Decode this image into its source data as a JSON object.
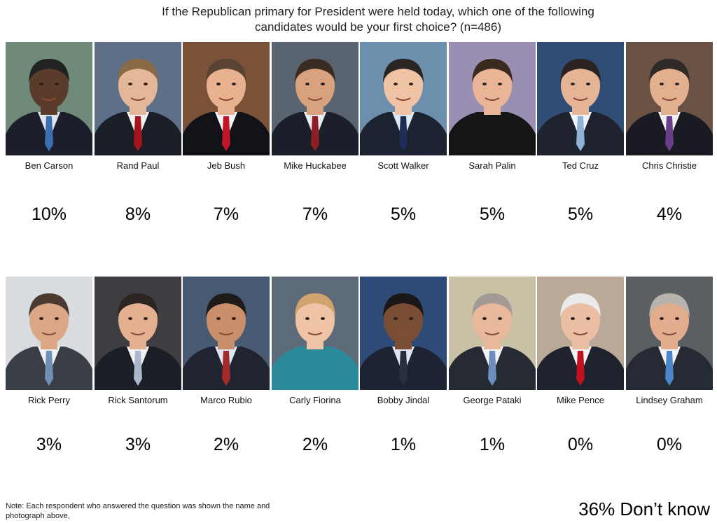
{
  "title_lines": [
    "If the Republican primary for President were held today, which one of the following",
    "candidates would be your first choice? (n=486)"
  ],
  "chart_data": {
    "type": "table",
    "title": "If the Republican primary for President were held today, which one of the following candidates would be your first choice? (n=486)",
    "unit": "%",
    "categories": [
      "Ben Carson",
      "Rand Paul",
      "Jeb Bush",
      "Mike Huckabee",
      "Scott Walker",
      "Sarah Palin",
      "Ted Cruz",
      "Chris Christie",
      "Rick Perry",
      "Rick Santorum",
      "Marco Rubio",
      "Carly Fiorina",
      "Bobby Jindal",
      "George Pataki",
      "Mike Pence",
      "Lindsey Graham"
    ],
    "values": [
      10,
      8,
      7,
      7,
      5,
      5,
      5,
      4,
      3,
      3,
      2,
      2,
      1,
      1,
      0,
      0
    ],
    "labels": [
      "10%",
      "8%",
      "7%",
      "7%",
      "5%",
      "5%",
      "5%",
      "4%",
      "3%",
      "3%",
      "2%",
      "2%",
      "1%",
      "1%",
      "0%",
      "0%"
    ],
    "dont_know": {
      "value": 36,
      "label": "36% Don’t know"
    }
  },
  "photo_styles": [
    {
      "bg": "#6f8a78",
      "suit": "#1c1f2b",
      "skin": "#5b3b2a",
      "hair": "#222222",
      "tie": "#3b6fb0",
      "shirt": "#dfe6ee"
    },
    {
      "bg": "#5d7088",
      "suit": "#1a1e27",
      "skin": "#e3b797",
      "hair": "#8a6a45",
      "tie": "#a8141b",
      "shirt": "#f2f2f2"
    },
    {
      "bg": "#7a5238",
      "suit": "#111318",
      "skin": "#e8b190",
      "hair": "#5b4333",
      "tie": "#c1162a",
      "shirt": "#f4f4f4"
    },
    {
      "bg": "#5a6471",
      "suit": "#1b1f29",
      "skin": "#d9a27e",
      "hair": "#3a2c22",
      "tie": "#8f1d24",
      "shirt": "#e9eef5"
    },
    {
      "bg": "#6d8fae",
      "suit": "#1d2230",
      "skin": "#f0c3a4",
      "hair": "#2a2522",
      "tie": "#1c2e55",
      "shirt": "#dde8f4"
    },
    {
      "bg": "#9a8fb2",
      "suit": "#151515",
      "skin": "#eab596",
      "hair": "#3a2a20",
      "tie": "#151515",
      "shirt": "#151515"
    },
    {
      "bg": "#2f4d75",
      "suit": "#1f2330",
      "skin": "#e5b494",
      "hair": "#2a2321",
      "tie": "#8fb4d8",
      "shirt": "#f1f4f8"
    },
    {
      "bg": "#6a5244",
      "suit": "#1a1b22",
      "skin": "#e3b08f",
      "hair": "#2f2a28",
      "tie": "#6a3e88",
      "shirt": "#f1f1f1"
    },
    {
      "bg": "#d9dde0",
      "suit": "#3a3f47",
      "skin": "#dca786",
      "hair": "#4a3a30",
      "tie": "#6f8fb3",
      "shirt": "#eef2f6"
    },
    {
      "bg": "#3d3d42",
      "suit": "#1d1f26",
      "skin": "#e4b08f",
      "hair": "#2b2421",
      "tie": "#aab7cc",
      "shirt": "#f2f2f2"
    },
    {
      "bg": "#485a72",
      "suit": "#1f2430",
      "skin": "#c98f6b",
      "hair": "#1f1b19",
      "tie": "#a52a2a",
      "shirt": "#dfe8f2"
    },
    {
      "bg": "#5d6b78",
      "suit": "#2a8a99",
      "skin": "#efc3a6",
      "hair": "#d1a36e",
      "tie": "#2a8a99",
      "shirt": "#2a8a99"
    },
    {
      "bg": "#2e4a77",
      "suit": "#1d2333",
      "skin": "#7a4e34",
      "hair": "#1b1716",
      "tie": "#2a2f3d",
      "shirt": "#dde4ee"
    },
    {
      "bg": "#c9c1a6",
      "suit": "#262a33",
      "skin": "#e7b89a",
      "hair": "#a29b93",
      "tie": "#6c8fbf",
      "shirt": "#f3f3f3"
    },
    {
      "bg": "#b9a996",
      "suit": "#1e222d",
      "skin": "#ebbfa3",
      "hair": "#eaeaea",
      "tie": "#c0121e",
      "shirt": "#f4f4f4"
    },
    {
      "bg": "#5c5f62",
      "suit": "#262a35",
      "skin": "#e1ad8e",
      "hair": "#b9b3ad",
      "tie": "#4a86c8",
      "shirt": "#f2f4f7"
    }
  ],
  "note_lines": [
    "Note: Each respondent who answered the question was shown the name and",
    "photograph above,"
  ]
}
